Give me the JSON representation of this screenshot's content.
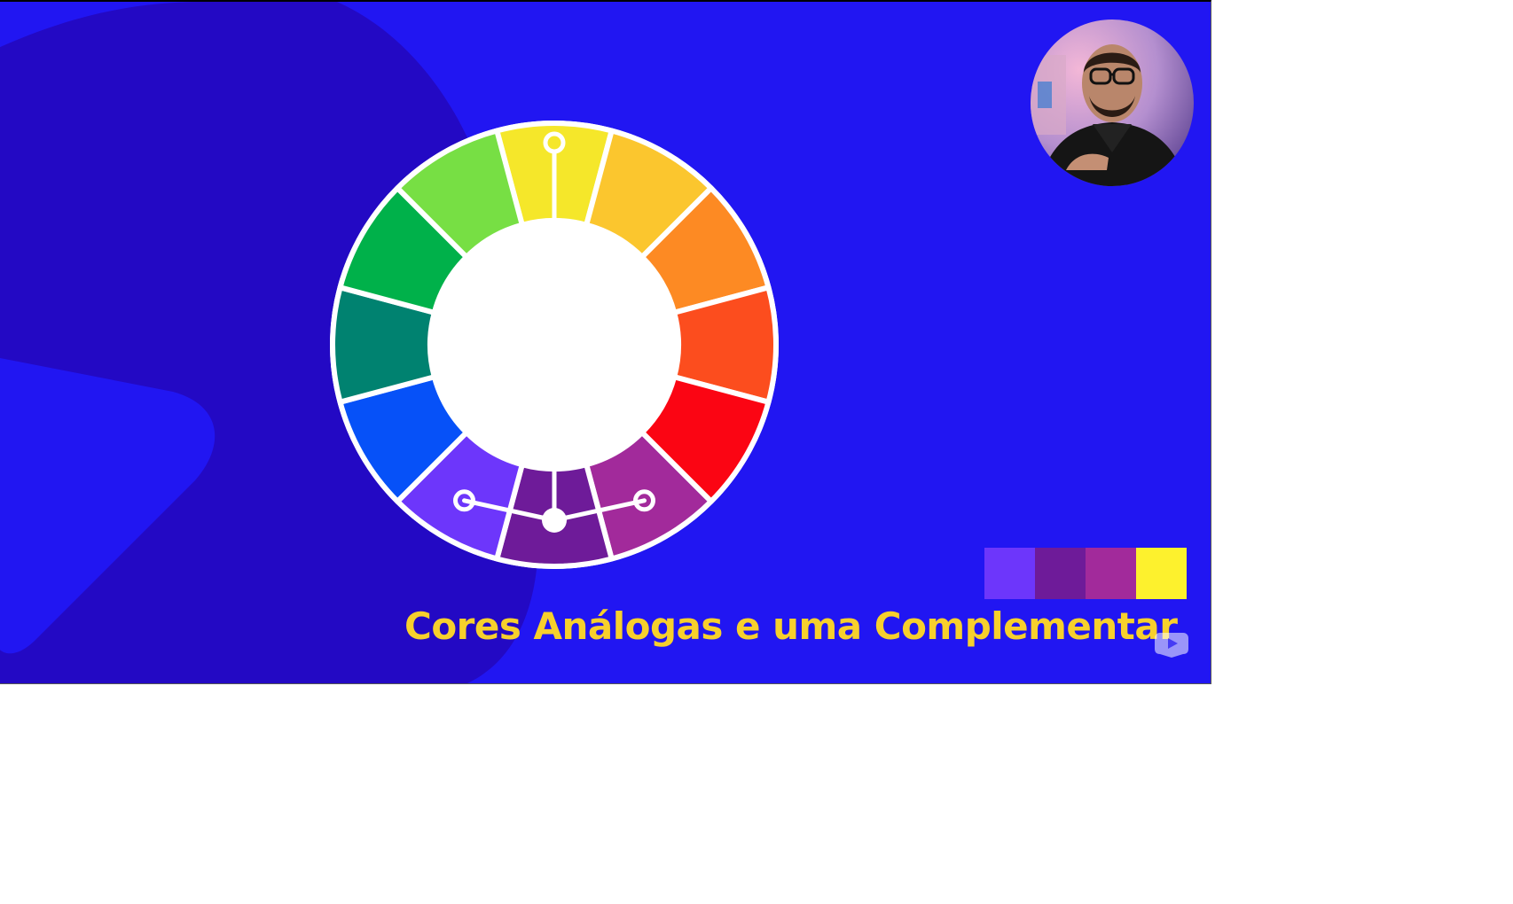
{
  "caption": {
    "text": "Cores Análogas e uma Complementar",
    "color": "#f7d02c"
  },
  "background": {
    "color": "#2116f2",
    "shape_color": "#2309c4"
  },
  "color_wheel": {
    "segments": [
      {
        "name": "yellow",
        "color": "#f5e72a"
      },
      {
        "name": "yellow-orange",
        "color": "#fbc62e"
      },
      {
        "name": "orange",
        "color": "#fd8a23"
      },
      {
        "name": "red-orange",
        "color": "#fc4d1e"
      },
      {
        "name": "red",
        "color": "#fb0513"
      },
      {
        "name": "red-violet",
        "color": "#a22a9b"
      },
      {
        "name": "violet",
        "color": "#6e1b99"
      },
      {
        "name": "blue-violet",
        "color": "#6d36fb"
      },
      {
        "name": "blue",
        "color": "#0651f8"
      },
      {
        "name": "blue-green",
        "color": "#008270"
      },
      {
        "name": "green",
        "color": "#00b14a"
      },
      {
        "name": "yellow-green",
        "color": "#77df44"
      }
    ],
    "selected": [
      "violet",
      "red-violet",
      "blue-violet",
      "yellow"
    ]
  },
  "swatches": [
    "#6d36fb",
    "#6e1b99",
    "#a22a9b",
    "#fdf12d"
  ],
  "webcam": {
    "icon": "presenter-avatar"
  },
  "watermark": {
    "icon": "play-watermark-icon"
  }
}
